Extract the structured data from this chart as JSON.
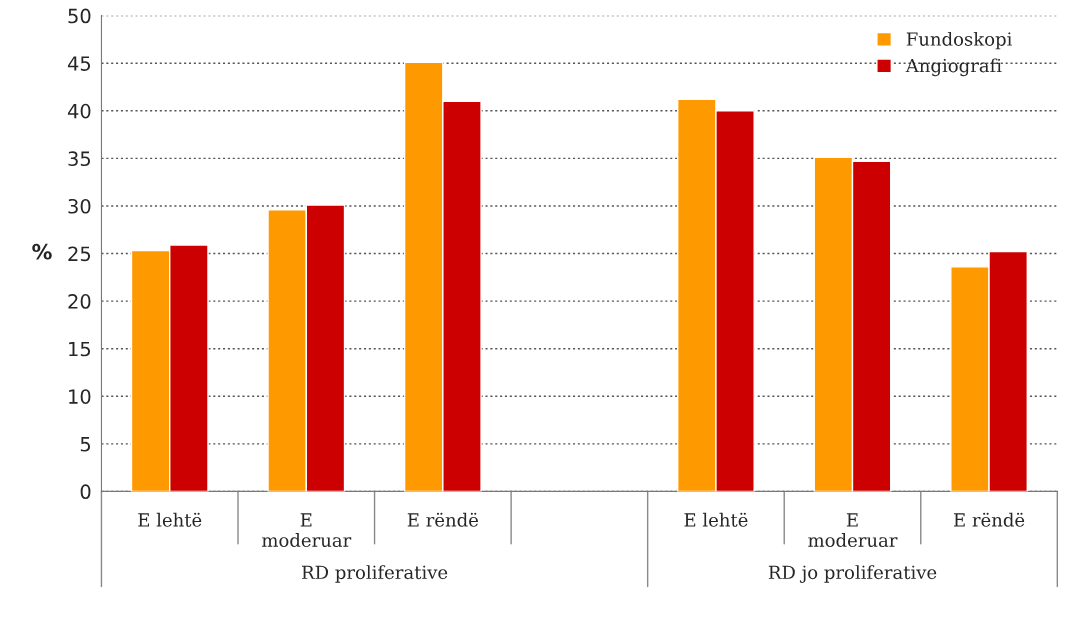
{
  "chart_data": {
    "type": "bar",
    "categories": [
      "E lehtë",
      "E moderuar",
      "E rëndë",
      null,
      "E lehtë",
      "E moderuar",
      "E rëndë"
    ],
    "series": [
      {
        "name": "Fundoskopi",
        "color": "#ff9900",
        "values": [
          25.3,
          29.6,
          45.1,
          null,
          41.2,
          35.1,
          23.6
        ]
      },
      {
        "name": "Angiografi",
        "color": "#cc0000",
        "values": [
          25.9,
          30.1,
          41.0,
          null,
          40.0,
          34.7,
          25.2
        ]
      }
    ],
    "ylabel": "%",
    "ylim": [
      0,
      50
    ],
    "yticks": [
      0,
      5,
      10,
      15,
      20,
      25,
      30,
      35,
      40,
      45,
      50
    ],
    "grid": "y",
    "legend": "top right",
    "annotations": [
      "RD proliferative",
      "RD jo proliferative"
    ]
  }
}
